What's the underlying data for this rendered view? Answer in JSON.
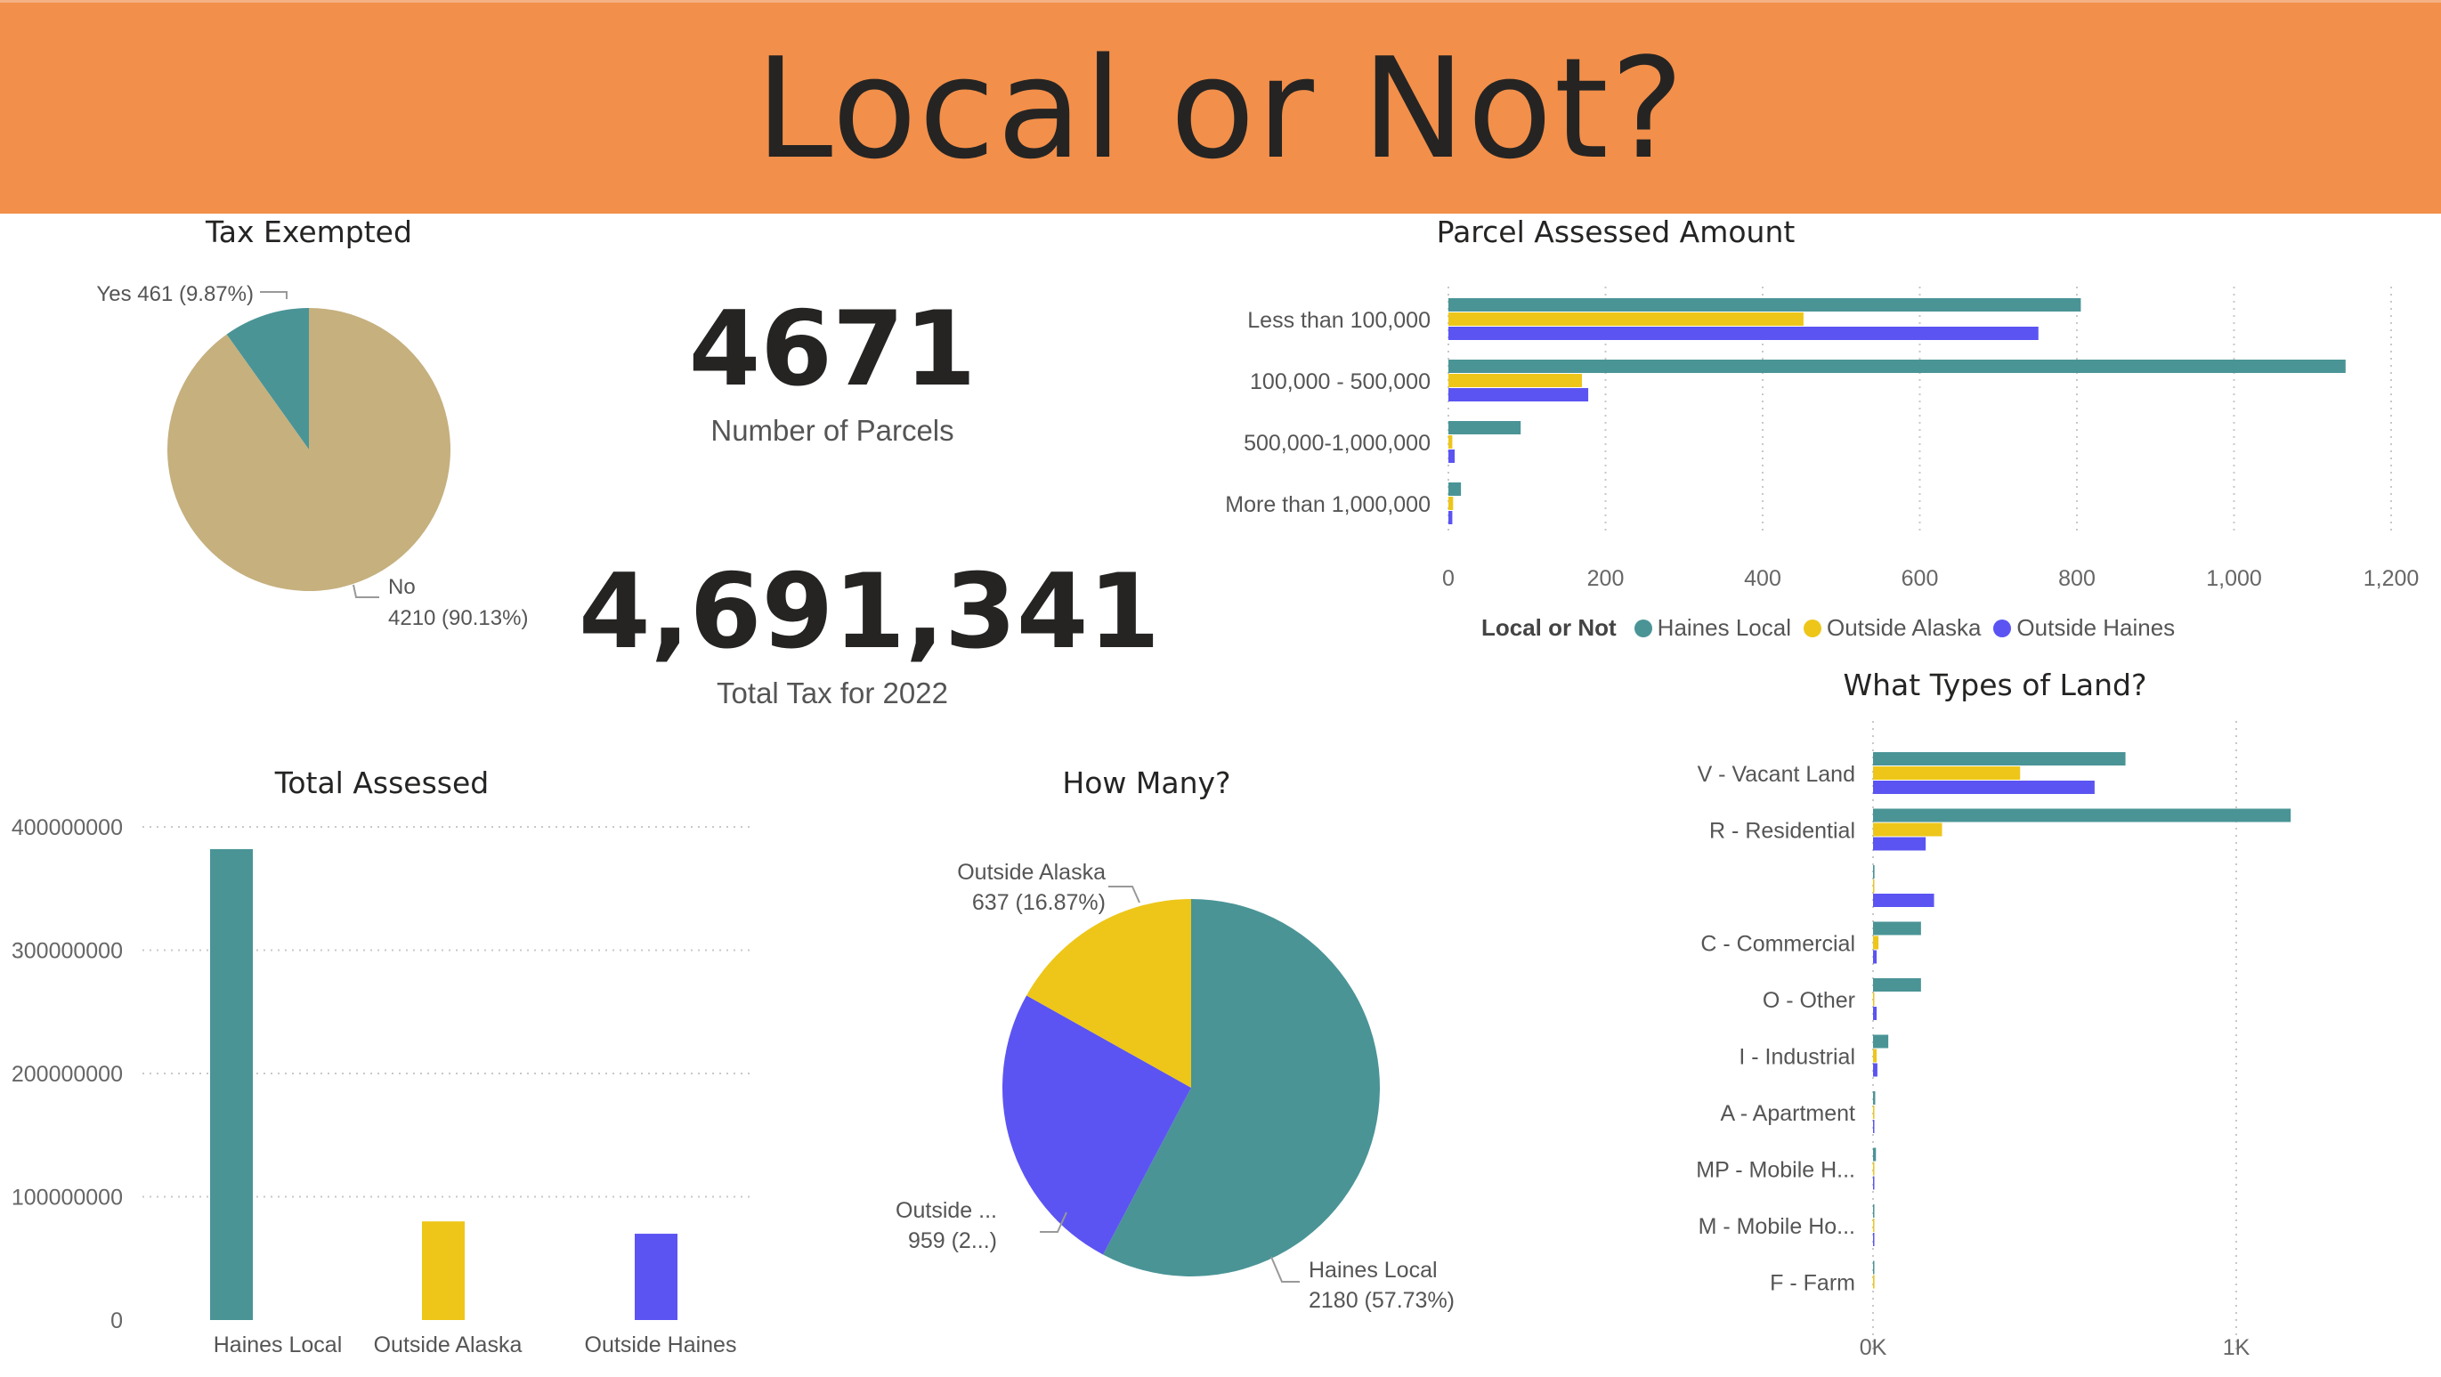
{
  "page": {
    "title": "Local or Not?"
  },
  "colors": {
    "haines_local": "#4a9496",
    "outside_alaska": "#edc619",
    "outside_haines": "#5b54f2",
    "tax_yes": "#4a9496",
    "tax_no": "#c5b07e"
  },
  "cards": {
    "parcels": {
      "value": "4671",
      "label": "Number of Parcels"
    },
    "tax": {
      "value": "4,691,341",
      "label": "Total Tax for 2022"
    }
  },
  "legend": {
    "title": "Local or Not",
    "items": [
      {
        "label": "Haines Local",
        "color": "#4a9496"
      },
      {
        "label": "Outside Alaska",
        "color": "#edc619"
      },
      {
        "label": "Outside Haines",
        "color": "#5b54f2"
      }
    ]
  },
  "chart_data": [
    {
      "id": "tax_exempted",
      "type": "pie",
      "title": "Tax Exempted",
      "slices": [
        {
          "label": "Yes",
          "value": 461,
          "display": "Yes 461 (9.87%)",
          "color": "#4a9496"
        },
        {
          "label": "No",
          "value": 4210,
          "display_line1": "No",
          "display_line2": "4210 (90.13%)",
          "color": "#c5b07e"
        }
      ]
    },
    {
      "id": "parcel_assessed_amount",
      "type": "bar",
      "orientation": "horizontal",
      "title": "Parcel Assessed Amount",
      "categories": [
        "Less than 100,000",
        "100,000 - 500,000",
        "500,000-1,000,000",
        "More than 1,000,000"
      ],
      "series": [
        {
          "name": "Haines Local",
          "color": "#4a9496",
          "values": [
            805,
            1142,
            92,
            16
          ]
        },
        {
          "name": "Outside Alaska",
          "color": "#edc619",
          "values": [
            452,
            170,
            5,
            6
          ]
        },
        {
          "name": "Outside Haines",
          "color": "#5b54f2",
          "values": [
            751,
            178,
            8,
            5
          ]
        }
      ],
      "xlim": [
        0,
        1200
      ],
      "xticks": [
        0,
        200,
        400,
        600,
        800,
        1000,
        1200
      ],
      "xtick_labels": [
        "0",
        "200",
        "400",
        "600",
        "800",
        "1,000",
        "1,200"
      ],
      "grid": true
    },
    {
      "id": "land_types",
      "type": "bar",
      "orientation": "horizontal",
      "title": "What Types of Land?",
      "categories": [
        "V - Vacant Land",
        "R - Residential",
        "",
        "C - Commercial",
        "O - Other",
        "I - Industrial",
        "A - Apartment",
        "MP - Mobile H...",
        "M - Mobile Ho...",
        "F - Farm"
      ],
      "series": [
        {
          "name": "Haines Local",
          "color": "#4a9496",
          "values": [
            695,
            1150,
            4,
            132,
            132,
            42,
            6,
            8,
            3,
            2
          ]
        },
        {
          "name": "Outside Alaska",
          "color": "#edc619",
          "values": [
            405,
            190,
            2,
            15,
            3,
            10,
            2,
            3,
            3,
            4
          ]
        },
        {
          "name": "Outside Haines",
          "color": "#5b54f2",
          "values": [
            610,
            145,
            168,
            10,
            10,
            12,
            3,
            3,
            3,
            0
          ]
        }
      ],
      "xlim": [
        0,
        1350
      ],
      "xticks": [
        0,
        1000
      ],
      "xtick_labels": [
        "0K",
        "1K"
      ],
      "grid": true
    },
    {
      "id": "total_assessed",
      "type": "bar",
      "title": "Total Assessed",
      "categories": [
        "Haines Local",
        "Outside Alaska",
        "Outside Haines"
      ],
      "values": [
        382000000,
        80000000,
        70000000
      ],
      "colors": [
        "#4a9496",
        "#edc619",
        "#5b54f2"
      ],
      "ylim": [
        0,
        400000000
      ],
      "yticks": [
        0,
        100000000,
        200000000,
        300000000,
        400000000
      ],
      "ytick_labels": [
        "0",
        "100000000",
        "200000000",
        "300000000",
        "400000000"
      ],
      "grid": true
    },
    {
      "id": "how_many",
      "type": "pie",
      "title": "How Many?",
      "slices": [
        {
          "label": "Haines Local",
          "value": 2180,
          "display_line1": "Haines Local",
          "display_line2": "2180 (57.73%)",
          "color": "#4a9496"
        },
        {
          "label": "Outside Haines",
          "value": 959,
          "display_line1": "Outside ...",
          "display_line2": "959 (2...)",
          "color": "#5b54f2"
        },
        {
          "label": "Outside Alaska",
          "value": 637,
          "display_line1": "Outside Alaska",
          "display_line2": "637 (16.87%)",
          "color": "#edc619"
        }
      ]
    }
  ]
}
